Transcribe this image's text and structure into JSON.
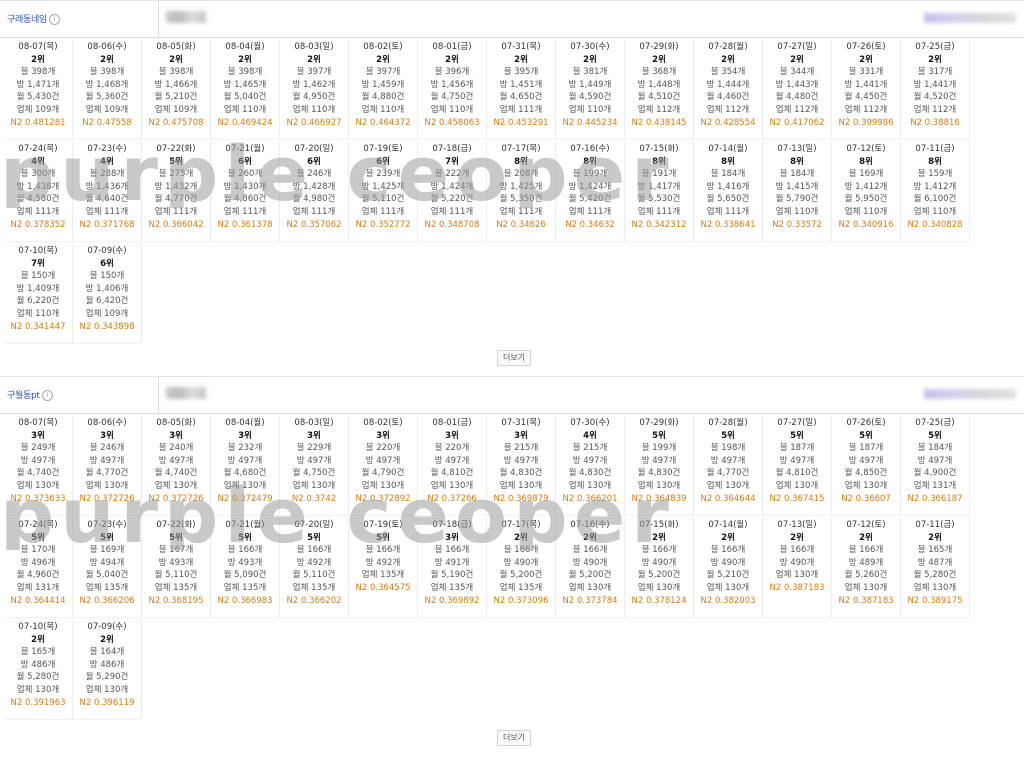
{
  "sections": [
    {
      "title": "구래동네임",
      "more_label": "더보기",
      "cards": [
        {
          "date": "08-07(목)",
          "rank": "2위",
          "total": "블 398개",
          "room": "방 1,471개",
          "month": "월 5,430건",
          "biz": "업체 109개",
          "n2": "N2 0.481281"
        },
        {
          "date": "08-06(수)",
          "rank": "2위",
          "total": "블 398개",
          "room": "방 1,468개",
          "month": "월 5,360건",
          "biz": "업체 109개",
          "n2": "N2 0.47558"
        },
        {
          "date": "08-05(화)",
          "rank": "2위",
          "total": "블 398개",
          "room": "방 1,466개",
          "month": "월 5,210건",
          "biz": "업체 109개",
          "n2": "N2 0.475708"
        },
        {
          "date": "08-04(월)",
          "rank": "2위",
          "total": "블 398개",
          "room": "방 1,465개",
          "month": "월 5,040건",
          "biz": "업체 110개",
          "n2": "N2 0.469424"
        },
        {
          "date": "08-03(일)",
          "rank": "2위",
          "total": "블 397개",
          "room": "방 1,462개",
          "month": "월 4,950건",
          "biz": "업체 110개",
          "n2": "N2 0.466927"
        },
        {
          "date": "08-02(토)",
          "rank": "2위",
          "total": "블 397개",
          "room": "방 1,459개",
          "month": "월 4,880건",
          "biz": "업체 110개",
          "n2": "N2 0.464372"
        },
        {
          "date": "08-01(금)",
          "rank": "2위",
          "total": "블 396개",
          "room": "방 1,456개",
          "month": "월 4,750건",
          "biz": "업체 110개",
          "n2": "N2 0.458063"
        },
        {
          "date": "07-31(목)",
          "rank": "2위",
          "total": "블 395개",
          "room": "방 1,451개",
          "month": "월 4,650건",
          "biz": "업체 111개",
          "n2": "N2 0.453291"
        },
        {
          "date": "07-30(수)",
          "rank": "2위",
          "total": "블 381개",
          "room": "방 1,449개",
          "month": "월 4,590건",
          "biz": "업체 110개",
          "n2": "N2 0.445234"
        },
        {
          "date": "07-29(화)",
          "rank": "2위",
          "total": "블 368개",
          "room": "방 1,448개",
          "month": "월 4,510건",
          "biz": "업체 112개",
          "n2": "N2 0.438145"
        },
        {
          "date": "07-28(월)",
          "rank": "2위",
          "total": "블 354개",
          "room": "방 1,444개",
          "month": "월 4,460건",
          "biz": "업체 112개",
          "n2": "N2 0.428554"
        },
        {
          "date": "07-27(일)",
          "rank": "2위",
          "total": "블 344개",
          "room": "방 1,443개",
          "month": "월 4,480건",
          "biz": "업체 112개",
          "n2": "N2 0.417062"
        },
        {
          "date": "07-26(토)",
          "rank": "2위",
          "total": "블 331개",
          "room": "방 1,441개",
          "month": "월 4,450건",
          "biz": "업체 112개",
          "n2": "N2 0.399986"
        },
        {
          "date": "07-25(금)",
          "rank": "2위",
          "total": "블 317개",
          "room": "방 1,441개",
          "month": "월 4,520건",
          "biz": "업체 112개",
          "n2": "N2 0.38816"
        },
        {
          "date": "07-24(목)",
          "rank": "4위",
          "total": "블 300개",
          "room": "방 1,438개",
          "month": "월 4,580건",
          "biz": "업체 111개",
          "n2": "N2 0.378352"
        },
        {
          "date": "07-23(수)",
          "rank": "4위",
          "total": "블 288개",
          "room": "방 1,436개",
          "month": "월 4,640건",
          "biz": "업체 111개",
          "n2": "N2 0.371768"
        },
        {
          "date": "07-22(화)",
          "rank": "5위",
          "total": "블 275개",
          "room": "방 1,432개",
          "month": "월 4,770건",
          "biz": "업체 111개",
          "n2": "N2 0.366042"
        },
        {
          "date": "07-21(월)",
          "rank": "6위",
          "total": "블 260개",
          "room": "방 1,430개",
          "month": "월 4,860건",
          "biz": "업체 111개",
          "n2": "N2 0.361378"
        },
        {
          "date": "07-20(일)",
          "rank": "6위",
          "total": "블 246개",
          "room": "방 1,428개",
          "month": "월 4,980건",
          "biz": "업체 111개",
          "n2": "N2 0.357062"
        },
        {
          "date": "07-19(토)",
          "rank": "6위",
          "total": "블 239개",
          "room": "방 1,425개",
          "month": "월 5,110건",
          "biz": "업체 111개",
          "n2": "N2 0.352772"
        },
        {
          "date": "07-18(금)",
          "rank": "7위",
          "total": "블 222개",
          "room": "방 1,424개",
          "month": "월 5,220건",
          "biz": "업체 111개",
          "n2": "N2 0.348708"
        },
        {
          "date": "07-17(목)",
          "rank": "8위",
          "total": "블 208개",
          "room": "방 1,425개",
          "month": "월 5,350건",
          "biz": "업체 111개",
          "n2": "N2 0.34626"
        },
        {
          "date": "07-16(수)",
          "rank": "8위",
          "total": "블 199개",
          "room": "방 1,424개",
          "month": "월 5,420건",
          "biz": "업체 111개",
          "n2": "N2 0.34632"
        },
        {
          "date": "07-15(화)",
          "rank": "8위",
          "total": "블 191개",
          "room": "방 1,417개",
          "month": "월 5,530건",
          "biz": "업체 111개",
          "n2": "N2 0.342312"
        },
        {
          "date": "07-14(월)",
          "rank": "8위",
          "total": "블 184개",
          "room": "방 1,416개",
          "month": "월 5,650건",
          "biz": "업체 111개",
          "n2": "N2 0.338641"
        },
        {
          "date": "07-13(일)",
          "rank": "8위",
          "total": "블 184개",
          "room": "방 1,415개",
          "month": "월 5,790건",
          "biz": "업체 110개",
          "n2": "N2 0.33572"
        },
        {
          "date": "07-12(토)",
          "rank": "8위",
          "total": "블 169개",
          "room": "방 1,412개",
          "month": "월 5,950건",
          "biz": "업체 110개",
          "n2": "N2 0.340916"
        },
        {
          "date": "07-11(금)",
          "rank": "8위",
          "total": "블 159개",
          "room": "방 1,412개",
          "month": "월 6,100건",
          "biz": "업체 110개",
          "n2": "N2 0.340828"
        },
        {
          "date": "07-10(목)",
          "rank": "7위",
          "total": "블 150개",
          "room": "방 1,409개",
          "month": "월 6,220건",
          "biz": "업체 110개",
          "n2": "N2 0.341447"
        },
        {
          "date": "07-09(수)",
          "rank": "6위",
          "total": "블 150개",
          "room": "방 1,406개",
          "month": "월 6,420건",
          "biz": "업체 109개",
          "n2": "N2 0.343898"
        }
      ]
    },
    {
      "title": "구월동pt",
      "more_label": "더보기",
      "cards": [
        {
          "date": "08-07(목)",
          "rank": "3위",
          "total": "블 249개",
          "room": "방 497개",
          "month": "월 4,740건",
          "biz": "업체 130개",
          "n2": "N2 0.373633"
        },
        {
          "date": "08-06(수)",
          "rank": "3위",
          "total": "블 246개",
          "room": "방 497개",
          "month": "월 4,770건",
          "biz": "업체 130개",
          "n2": "N2 0.372726"
        },
        {
          "date": "08-05(화)",
          "rank": "3위",
          "total": "블 240개",
          "room": "방 497개",
          "month": "월 4,740건",
          "biz": "업체 130개",
          "n2": "N2 0.372726"
        },
        {
          "date": "08-04(월)",
          "rank": "3위",
          "total": "블 232개",
          "room": "방 497개",
          "month": "월 4,680건",
          "biz": "업체 130개",
          "n2": "N2 0.372479"
        },
        {
          "date": "08-03(일)",
          "rank": "3위",
          "total": "블 229개",
          "room": "방 497개",
          "month": "월 4,750건",
          "biz": "업체 130개",
          "n2": "N2 0.3742"
        },
        {
          "date": "08-02(토)",
          "rank": "3위",
          "total": "블 220개",
          "room": "방 497개",
          "month": "월 4,790건",
          "biz": "업체 130개",
          "n2": "N2 0.372892"
        },
        {
          "date": "08-01(금)",
          "rank": "3위",
          "total": "블 220개",
          "room": "방 497개",
          "month": "월 4,810건",
          "biz": "업체 130개",
          "n2": "N2 0.37266"
        },
        {
          "date": "07-31(목)",
          "rank": "3위",
          "total": "블 215개",
          "room": "방 497개",
          "month": "월 4,830건",
          "biz": "업체 130개",
          "n2": "N2 0.369879"
        },
        {
          "date": "07-30(수)",
          "rank": "4위",
          "total": "블 215개",
          "room": "방 497개",
          "month": "월 4,830건",
          "biz": "업체 130개",
          "n2": "N2 0.366201"
        },
        {
          "date": "07-29(화)",
          "rank": "5위",
          "total": "블 199개",
          "room": "방 497개",
          "month": "월 4,830건",
          "biz": "업체 130개",
          "n2": "N2 0.364839"
        },
        {
          "date": "07-28(월)",
          "rank": "5위",
          "total": "블 198개",
          "room": "방 497개",
          "month": "월 4,770건",
          "biz": "업체 130개",
          "n2": "N2 0.364644"
        },
        {
          "date": "07-27(일)",
          "rank": "5위",
          "total": "블 187개",
          "room": "방 497개",
          "month": "월 4,810건",
          "biz": "업체 130개",
          "n2": "N2 0.367415"
        },
        {
          "date": "07-26(토)",
          "rank": "5위",
          "total": "블 187개",
          "room": "방 497개",
          "month": "월 4,850건",
          "biz": "업체 130개",
          "n2": "N2 0.36607"
        },
        {
          "date": "07-25(금)",
          "rank": "5위",
          "total": "블 184개",
          "room": "방 497개",
          "month": "월 4,900건",
          "biz": "업체 131개",
          "n2": "N2 0.366187"
        },
        {
          "date": "07-24(목)",
          "rank": "5위",
          "total": "블 170개",
          "room": "방 496개",
          "month": "월 4,960건",
          "biz": "업체 131개",
          "n2": "N2 0.364414"
        },
        {
          "date": "07-23(수)",
          "rank": "5위",
          "total": "블 169개",
          "room": "방 494개",
          "month": "월 5,040건",
          "biz": "업체 135개",
          "n2": "N2 0.366206"
        },
        {
          "date": "07-22(화)",
          "rank": "5위",
          "total": "블 167개",
          "room": "방 493개",
          "month": "월 5,110건",
          "biz": "업체 135개",
          "n2": "N2 0.368195"
        },
        {
          "date": "07-21(월)",
          "rank": "5위",
          "total": "블 166개",
          "room": "방 493개",
          "month": "월 5,090건",
          "biz": "업체 135개",
          "n2": "N2 0.366983"
        },
        {
          "date": "07-20(일)",
          "rank": "5위",
          "total": "블 166개",
          "room": "방 492개",
          "month": "월 5,110건",
          "biz": "업체 135개",
          "n2": "N2 0.366202"
        },
        {
          "date": "07-19(토)",
          "rank": "5위",
          "total": "블 166개",
          "room": "방 492개",
          "month": "업체 135개",
          "biz": "",
          "n2": "N2 0.364575"
        },
        {
          "date": "07-18(금)",
          "rank": "3위",
          "total": "블 166개",
          "room": "방 491개",
          "month": "월 5,190건",
          "biz": "업체 135개",
          "n2": "N2 0.369892"
        },
        {
          "date": "07-17(목)",
          "rank": "2위",
          "total": "블 166개",
          "room": "방 490개",
          "month": "월 5,200건",
          "biz": "업체 135개",
          "n2": "N2 0.373096"
        },
        {
          "date": "07-16(수)",
          "rank": "2위",
          "total": "블 166개",
          "room": "방 490개",
          "month": "월 5,200건",
          "biz": "업체 130개",
          "n2": "N2 0.373784"
        },
        {
          "date": "07-15(화)",
          "rank": "2위",
          "total": "블 166개",
          "room": "방 490개",
          "month": "월 5,200건",
          "biz": "업체 130개",
          "n2": "N2 0.378124"
        },
        {
          "date": "07-14(월)",
          "rank": "2위",
          "total": "블 166개",
          "room": "방 490개",
          "month": "월 5,210건",
          "biz": "업체 130개",
          "n2": "N2 0.382003"
        },
        {
          "date": "07-13(일)",
          "rank": "2위",
          "total": "블 166개",
          "room": "방 490개",
          "month": "업체 130개",
          "biz": "",
          "n2": "N2 0.387183"
        },
        {
          "date": "07-12(토)",
          "rank": "2위",
          "total": "블 166개",
          "room": "방 489개",
          "month": "월 5,260건",
          "biz": "업체 130개",
          "n2": "N2 0.387183"
        },
        {
          "date": "07-11(금)",
          "rank": "2위",
          "total": "블 165개",
          "room": "방 487개",
          "month": "월 5,280건",
          "biz": "업체 130개",
          "n2": "N2 0.389175"
        },
        {
          "date": "07-10(목)",
          "rank": "2위",
          "total": "블 165개",
          "room": "방 486개",
          "month": "월 5,280건",
          "biz": "업체 130개",
          "n2": "N2 0.391963"
        },
        {
          "date": "07-09(수)",
          "rank": "2위",
          "total": "블 164개",
          "room": "방 486개",
          "month": "월 5,290건",
          "biz": "업체 130개",
          "n2": "N2 0.396119"
        }
      ]
    }
  ],
  "watermark": "purple ceoper",
  "colors": {
    "title": "#2a4fb8",
    "n2": "#e07a10"
  }
}
